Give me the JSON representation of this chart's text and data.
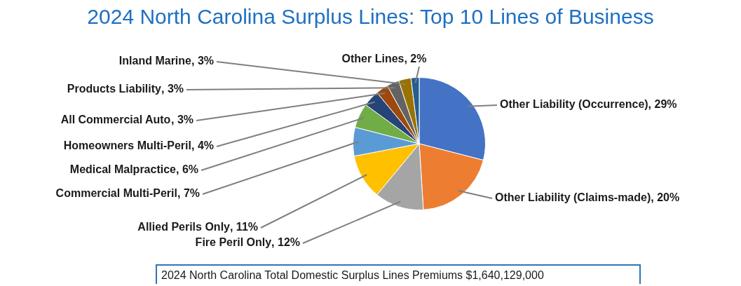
{
  "chart_data": {
    "type": "pie",
    "title": "2024 North Carolina Surplus Lines: Top 10 Lines of Business",
    "categories": [
      "Other Liability (Occurrence)",
      "Other Liability (Claims-made)",
      "Fire Peril Only",
      "Allied Perils Only",
      "Commercial Multi-Peril",
      "Medical Malpractice",
      "Homeowners Multi-Peril",
      "All Commercial Auto",
      "Products Liability",
      "Inland Marine",
      "Other Lines"
    ],
    "values": [
      29,
      20,
      12,
      11,
      7,
      6,
      4,
      3,
      3,
      3,
      2
    ],
    "colors": [
      "#4472c4",
      "#ed7d31",
      "#a5a5a5",
      "#ffc000",
      "#5b9bd5",
      "#70ad47",
      "#264478",
      "#9e480e",
      "#636363",
      "#997300",
      "#255e91"
    ],
    "value_labels": [
      ", 29%",
      ", 20%",
      ", 12%",
      ", 11%",
      ", 7%",
      ", 6%",
      ", 4%",
      ", 3%",
      ", 3%",
      ", 3%",
      ", 2%"
    ],
    "legend": false,
    "annotations": [
      "2024 North Carolina Total Domestic Surplus Lines Premiums $1,640,129,000"
    ]
  }
}
